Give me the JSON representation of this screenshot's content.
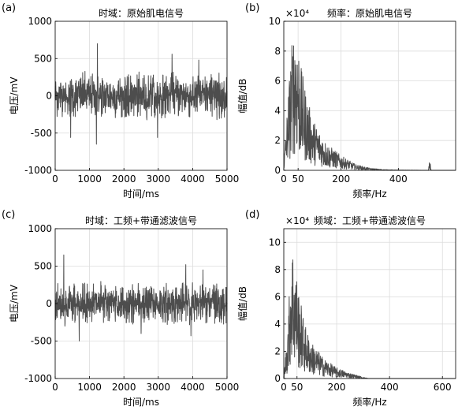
{
  "chart_data": [
    {
      "type": "line",
      "panel_label": "(a)",
      "title": "时域：原始肌电信号",
      "xlabel": "时间/ms",
      "ylabel": "电压/mV",
      "xlim": [
        0,
        5000
      ],
      "ylim": [
        -1000,
        1000
      ],
      "xticks": [
        0,
        1000,
        2000,
        3000,
        4000,
        5000
      ],
      "yticks": [
        -1000,
        -500,
        0,
        500,
        1000
      ],
      "grid": true,
      "series": [
        {
          "amplitude": 300,
          "peaks": [
            [
              1230,
              700
            ],
            [
              3400,
              560
            ],
            [
              1200,
              -650
            ],
            [
              2980,
              -560
            ],
            [
              450,
              -560
            ],
            [
              4180,
              480
            ]
          ]
        }
      ]
    },
    {
      "type": "line",
      "panel_label": "(b)",
      "title": "频率：原始肌电信号",
      "xlabel": "频率/Hz",
      "ylabel": "幅值/dB",
      "y_multiplier": "×10⁴",
      "xlim": [
        0,
        600
      ],
      "ylim": [
        0,
        10
      ],
      "xticks": [
        0,
        50,
        200,
        400
      ],
      "yticks": [
        0,
        2,
        4,
        6,
        8,
        10
      ],
      "grid": true,
      "series": [
        {
          "envelope": [
            [
              0,
              0.5
            ],
            [
              10,
              3.5
            ],
            [
              20,
              6.5
            ],
            [
              30,
              9.0
            ],
            [
              40,
              10.0
            ],
            [
              50,
              9.0
            ],
            [
              60,
              7.0
            ],
            [
              80,
              5.0
            ],
            [
              100,
              3.5
            ],
            [
              150,
              1.8
            ],
            [
              200,
              1.0
            ],
            [
              250,
              0.4
            ],
            [
              300,
              0.15
            ],
            [
              350,
              0.05
            ],
            [
              400,
              0.02
            ],
            [
              500,
              0.0
            ]
          ],
          "spike": [
            [
              505,
              0.0
            ],
            [
              508,
              0.5
            ],
            [
              510,
              0.7
            ],
            [
              512,
              0.4
            ],
            [
              515,
              0.0
            ]
          ]
        }
      ]
    },
    {
      "type": "line",
      "panel_label": "(c)",
      "title": "时域：工频+带通滤波信号",
      "xlabel": "时间/ms",
      "ylabel": "电压/mV",
      "xlim": [
        0,
        5000
      ],
      "ylim": [
        -1000,
        1000
      ],
      "xticks": [
        0,
        1000,
        2000,
        3000,
        4000,
        5000
      ],
      "yticks": [
        -1000,
        -500,
        0,
        500,
        1000
      ],
      "grid": true,
      "series": [
        {
          "amplitude": 280,
          "peaks": [
            [
              250,
              650
            ],
            [
              3800,
              520
            ],
            [
              4300,
              450
            ],
            [
              700,
              -500
            ],
            [
              3950,
              -430
            ],
            [
              2500,
              -400
            ]
          ]
        }
      ]
    },
    {
      "type": "line",
      "panel_label": "(d)",
      "title": "频域：工频+带通滤波信号",
      "xlabel": "频率/Hz",
      "ylabel": "幅值/dB",
      "y_multiplier": "×10⁴",
      "xlim": [
        0,
        650
      ],
      "ylim": [
        0,
        11
      ],
      "xticks": [
        0,
        50,
        200,
        400,
        600
      ],
      "yticks": [
        0,
        2,
        4,
        6,
        8,
        10
      ],
      "grid": true,
      "series": [
        {
          "envelope": [
            [
              0,
              0.2
            ],
            [
              10,
              2.5
            ],
            [
              20,
              6.0
            ],
            [
              30,
              10.5
            ],
            [
              40,
              9.0
            ],
            [
              50,
              7.5
            ],
            [
              60,
              6.0
            ],
            [
              80,
              4.0
            ],
            [
              100,
              2.8
            ],
            [
              150,
              1.5
            ],
            [
              200,
              0.8
            ],
            [
              250,
              0.4
            ],
            [
              300,
              0.1
            ],
            [
              320,
              0.0
            ],
            [
              650,
              0.0
            ]
          ]
        }
      ]
    }
  ]
}
